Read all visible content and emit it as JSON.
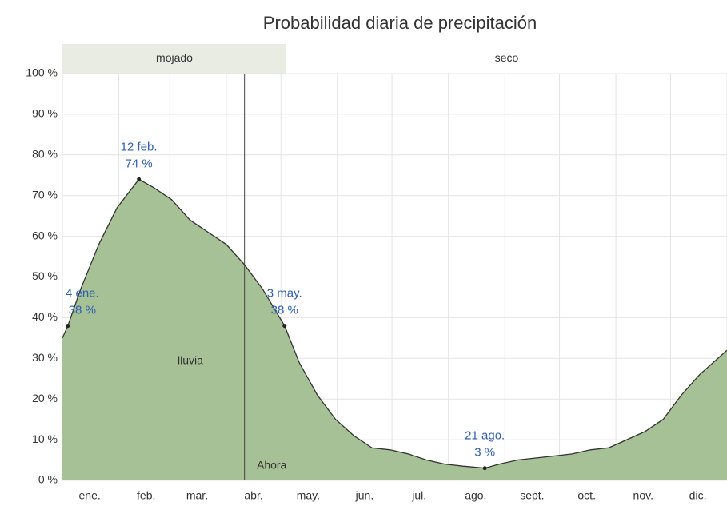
{
  "chart_data": {
    "type": "area",
    "title": "Probabilidad diaria de precipitación",
    "xlim": [
      0,
      365
    ],
    "ylim": [
      0,
      100
    ],
    "yticks": [
      {
        "value": 0,
        "label": "0 %"
      },
      {
        "value": 10,
        "label": "10 %"
      },
      {
        "value": 20,
        "label": "20 %"
      },
      {
        "value": 30,
        "label": "30 %"
      },
      {
        "value": 40,
        "label": "40 %"
      },
      {
        "value": 50,
        "label": "50 %"
      },
      {
        "value": 60,
        "label": "60 %"
      },
      {
        "value": 70,
        "label": "70 %"
      },
      {
        "value": 80,
        "label": "80 %"
      },
      {
        "value": 90,
        "label": "90 %"
      },
      {
        "value": 100,
        "label": "100 %"
      }
    ],
    "xticks": [
      {
        "value": 15,
        "label": "ene."
      },
      {
        "value": 46,
        "label": "feb."
      },
      {
        "value": 74,
        "label": "mar."
      },
      {
        "value": 105,
        "label": "abr."
      },
      {
        "value": 135,
        "label": "may."
      },
      {
        "value": 166,
        "label": "jun."
      },
      {
        "value": 196,
        "label": "jul."
      },
      {
        "value": 227,
        "label": "ago."
      },
      {
        "value": 258,
        "label": "sept."
      },
      {
        "value": 288,
        "label": "oct."
      },
      {
        "value": 319,
        "label": "nov."
      },
      {
        "value": 349,
        "label": "dic."
      }
    ],
    "xgrid": [
      0,
      31,
      59,
      90,
      120,
      151,
      181,
      212,
      243,
      273,
      304,
      334,
      365
    ],
    "grid": true,
    "seasons": [
      {
        "label": "mojado",
        "start": 0,
        "end": 123,
        "color": "#e8ece2"
      },
      {
        "label": "seco",
        "start": 123,
        "end": 365,
        "color": "#ffffff"
      }
    ],
    "now": {
      "x": 100,
      "label": "Ahora"
    },
    "series": [
      {
        "name": "lluvia",
        "color": "#a6c195",
        "line_color": "#333333",
        "x": [
          0,
          3,
          10,
          20,
          30,
          42,
          50,
          60,
          70,
          80,
          90,
          100,
          110,
          122,
          130,
          140,
          150,
          160,
          170,
          180,
          190,
          200,
          210,
          220,
          232,
          240,
          250,
          260,
          270,
          280,
          290,
          300,
          310,
          320,
          330,
          340,
          350,
          365
        ],
        "values": [
          35,
          38,
          47,
          58,
          67,
          74,
          72,
          69,
          64,
          61,
          58,
          53,
          47,
          38,
          29,
          21,
          15,
          11,
          8,
          7.5,
          6.5,
          5,
          4,
          3.5,
          3,
          4,
          5,
          5.5,
          6,
          6.5,
          7.5,
          8,
          10,
          12,
          15,
          21,
          26,
          32
        ]
      }
    ],
    "annotations": [
      {
        "x": 3,
        "value": 38,
        "date": "4 ene.",
        "label": "38 %"
      },
      {
        "x": 42,
        "value": 74,
        "date": "12 feb.",
        "label": "74 %"
      },
      {
        "x": 122,
        "value": 38,
        "date": "3 may.",
        "label": "38 %"
      },
      {
        "x": 232,
        "value": 3,
        "date": "21 ago.",
        "label": "3 %"
      }
    ]
  }
}
